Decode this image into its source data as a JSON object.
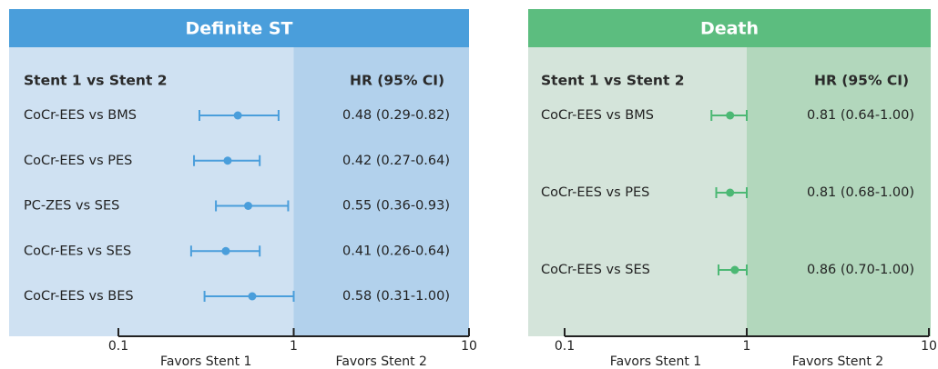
{
  "chart_data": [
    {
      "type": "forest",
      "title": "Definite ST",
      "label_header": "Stent 1 vs Stent 2",
      "value_header": "HR (95% CI)",
      "categories": [
        "CoCr-EES vs BMS",
        "CoCr-EES vs PES",
        "PC-ZES vs SES",
        "CoCr-EEs vs SES",
        "CoCr-EES vs BES"
      ],
      "values": [
        0.48,
        0.42,
        0.55,
        0.41,
        0.58
      ],
      "lower": [
        0.29,
        0.27,
        0.36,
        0.26,
        0.31
      ],
      "upper": [
        0.82,
        0.64,
        0.93,
        0.64,
        1.0
      ],
      "value_labels": [
        "0.48 (0.29-0.82)",
        "0.42 (0.27-0.64)",
        "0.55 (0.36-0.93)",
        "0.41 (0.26-0.64)",
        "0.58 (0.31-1.00)"
      ],
      "xlim": [
        0.1,
        10
      ],
      "xticks": [
        0.1,
        1,
        10
      ],
      "log_x": true,
      "left_label": "Favors Stent 1",
      "right_label": "Favors Stent 2",
      "color": "#4a9edb",
      "title_color": "#4a9edb",
      "background": "#cfe1f2",
      "shade": "#b2d1ec"
    },
    {
      "type": "forest",
      "title": "Death",
      "label_header": "Stent 1 vs Stent 2",
      "value_header": "HR (95% CI)",
      "categories": [
        "CoCr-EES vs BMS",
        "CoCr-EES vs PES",
        "CoCr-EES vs SES"
      ],
      "values": [
        0.81,
        0.81,
        0.86
      ],
      "lower": [
        0.64,
        0.68,
        0.7
      ],
      "upper": [
        1.0,
        1.0,
        1.0
      ],
      "value_labels": [
        "0.81 (0.64-1.00)",
        "0.81 (0.68-1.00)",
        "0.86 (0.70-1.00)"
      ],
      "xlim": [
        0.1,
        10
      ],
      "xticks": [
        0.1,
        1,
        10
      ],
      "log_x": true,
      "left_label": "Favors Stent 1",
      "right_label": "Favors Stent 2",
      "color": "#4cb874",
      "title_color": "#5cbd7f",
      "background": "#d4e4da",
      "shade": "#b2d7bc"
    }
  ]
}
